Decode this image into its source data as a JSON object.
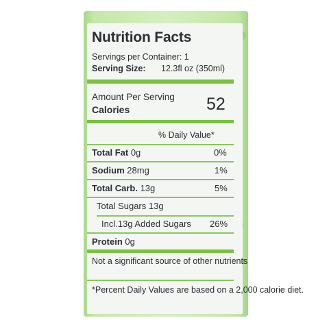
{
  "label": {
    "title": "Nutrition Facts",
    "servings": "Servings per Container: 1",
    "serving_size_label": "Serving Size:",
    "serving_size_value": "12.3fl oz (350ml)",
    "amount_per_serving": "Amount Per Serving",
    "calories_label": "Calories",
    "calories_value": "52",
    "daily_value_header": "% Daily Value*",
    "rows": [
      {
        "label": "Total Fat",
        "amount": "0g",
        "dv": "0%"
      },
      {
        "label": "Sodium",
        "amount": "28mg",
        "dv": "1%"
      },
      {
        "label": "Total Carb.",
        "amount": "13g",
        "dv": "5%"
      },
      {
        "label": "Total Sugars",
        "amount": "13g",
        "dv": ""
      },
      {
        "label": "Incl.13g Added Sugars",
        "amount": "",
        "dv": "26%"
      },
      {
        "label": "Protein",
        "amount": "0g",
        "dv": ""
      }
    ],
    "note_1": "Not a significant source of other nutrients",
    "note_2": "*Percent Daily Values are based on a 2,000 calorie diet."
  },
  "colors": {
    "accent_green": "#78c23e",
    "label_background": "#f3f6f3",
    "text": "#2b2e33"
  }
}
